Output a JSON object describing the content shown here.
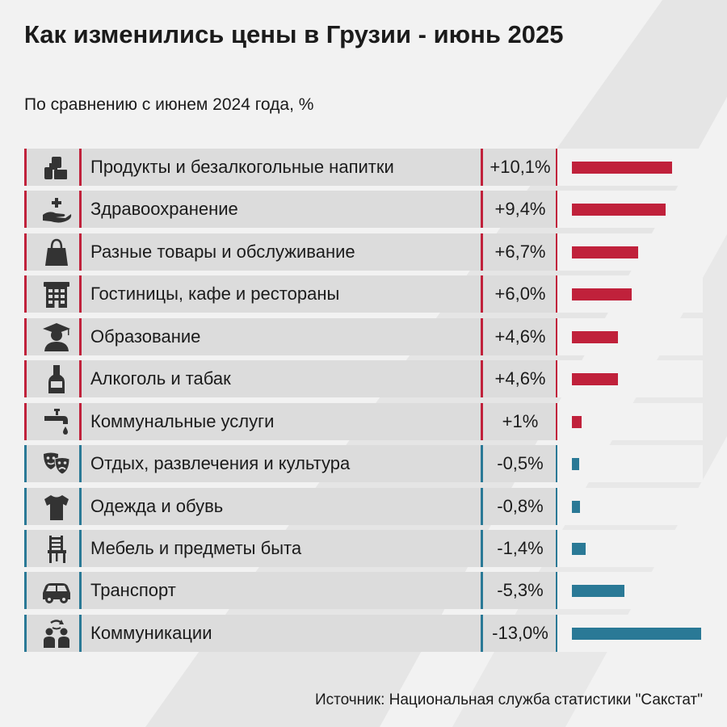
{
  "title": "Как изменились цены в Грузии - июнь 2025",
  "subtitle": "По сравнению с июнем 2024 года, %",
  "source": "Источник: Национальная служба статистики \"Сакстат\"",
  "colors": {
    "positive": "#c0213b",
    "negative": "#2a7996"
  },
  "chart_data": {
    "type": "bar",
    "orientation": "horizontal",
    "title": "Как изменились цены в Грузии - июнь 2025",
    "subtitle": "По сравнению с июнем 2024 года, %",
    "items": [
      {
        "label": "Продукты и безалкогольные напитки",
        "value": 10.1,
        "display": "+10,1%",
        "icon": "groceries-icon"
      },
      {
        "label": "Здравоохранение",
        "value": 9.4,
        "display": "+9,4%",
        "icon": "healthcare-hand-icon"
      },
      {
        "label": "Разные товары и обслуживание",
        "value": 6.7,
        "display": "+6,7%",
        "icon": "shopping-bag-icon"
      },
      {
        "label": "Гостиницы, кафе и рестораны",
        "value": 6.0,
        "display": "+6,0%",
        "icon": "hotel-building-icon"
      },
      {
        "label": "Образование",
        "value": 4.6,
        "display": "+4,6%",
        "icon": "graduate-icon"
      },
      {
        "label": "Алкоголь и табак",
        "value": 4.6,
        "display": "+4,6%",
        "icon": "bottle-icon"
      },
      {
        "label": "Коммунальные услуги",
        "value": 1.0,
        "display": "+1%",
        "icon": "water-tap-icon"
      },
      {
        "label": "Отдых, развлечения и культура",
        "value": -0.5,
        "display": "-0,5%",
        "icon": "theater-masks-icon"
      },
      {
        "label": "Одежда и обувь",
        "value": -0.8,
        "display": "-0,8%",
        "icon": "tshirt-icon"
      },
      {
        "label": "Мебель и предметы быта",
        "value": -1.4,
        "display": "-1,4%",
        "icon": "chair-icon"
      },
      {
        "label": "Транспорт",
        "value": -5.3,
        "display": "-5,3%",
        "icon": "car-icon"
      },
      {
        "label": "Коммуникации",
        "value": -13.0,
        "display": "-13,0%",
        "icon": "communication-people-icon"
      }
    ]
  }
}
